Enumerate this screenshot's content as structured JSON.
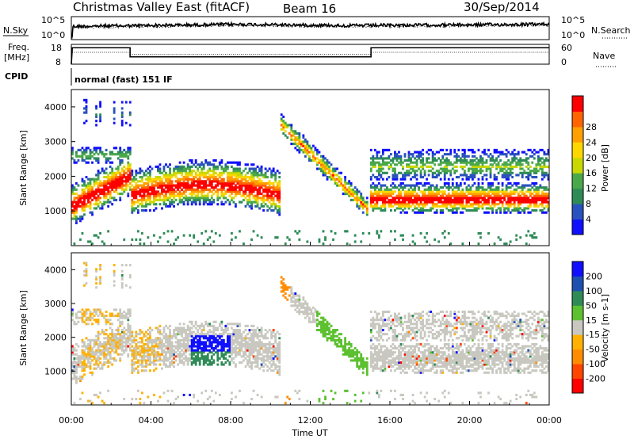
{
  "header": {
    "title": "Christmas Valley East (fitACF)",
    "beam": "Beam 16",
    "date": "30/Sep/2014",
    "mode": "normal (fast) 151 IF",
    "cpid_label": "CPID"
  },
  "noise_panel": {
    "left_label": "N.Sky",
    "right_label": "N.Search",
    "left_ticks": [
      "10^5",
      "10^0"
    ],
    "right_ticks": [
      "10^5",
      "10^0"
    ]
  },
  "freq_panel": {
    "left_label_line1": "Freq.",
    "left_label_line2": "[MHz]",
    "right_label": "Nave",
    "left_ticks": [
      "18",
      "8"
    ],
    "right_ticks": [
      "60",
      "0"
    ]
  },
  "colors": {
    "power": [
      "#1010ff",
      "#2a52be",
      "#2e8b57",
      "#4aa84a",
      "#c8d800",
      "#ffd700",
      "#ffa000",
      "#ff6400",
      "#ff0000"
    ],
    "velocity": [
      "#ff0000",
      "#ff4500",
      "#ff8c00",
      "#ffb000",
      "#c8c8c0",
      "#5cc030",
      "#2e8b57",
      "#1e50b0",
      "#1010ff"
    ]
  },
  "chart_data": [
    {
      "type": "heatmap",
      "quantity": "power",
      "ylabel": "Slant Range [km]",
      "ylim": [
        0,
        4500
      ],
      "yticks": [
        "1000",
        "2000",
        "3000",
        "4000"
      ],
      "colorbar_label": "Power [dB]",
      "colorbar_ticks": [
        "4",
        "8",
        "12",
        "16",
        "20",
        "24",
        "28"
      ]
    },
    {
      "type": "heatmap",
      "quantity": "velocity",
      "ylabel": "Slant Range [km]",
      "ylim": [
        0,
        4500
      ],
      "yticks": [
        "1000",
        "2000",
        "3000",
        "4000"
      ],
      "xlabel": "Time UT",
      "xticks": [
        "00:00",
        "04:00",
        "08:00",
        "12:00",
        "16:00",
        "20:00",
        "00:00"
      ],
      "xlim_hours": [
        0,
        24
      ],
      "colorbar_label": "Velocity [m s-1]",
      "colorbar_ticks": [
        "200",
        "100",
        "50",
        "15",
        "-15",
        "-50",
        "-100",
        "-200"
      ]
    }
  ]
}
